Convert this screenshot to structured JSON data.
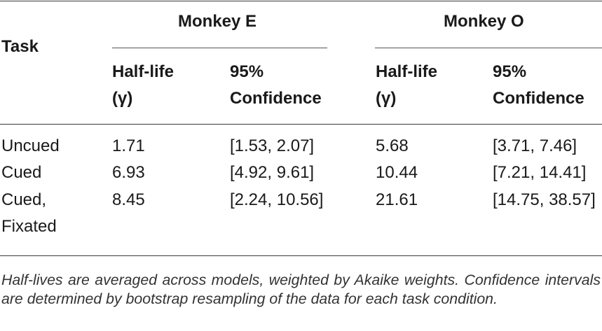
{
  "table": {
    "task_header": "Task",
    "groups": [
      "Monkey E",
      "Monkey O"
    ],
    "subheaders": {
      "halflife_line1": "Half-life",
      "halflife_line2": "(γ)",
      "ci_line1": "95%",
      "ci_line2": "Confidence"
    },
    "rows": [
      {
        "task_line1": "Uncued",
        "task_line2": "",
        "e_halflife": "1.71",
        "e_ci": "[1.53, 2.07]",
        "o_halflife": "5.68",
        "o_ci": "[3.71, 7.46]"
      },
      {
        "task_line1": "Cued",
        "task_line2": "",
        "e_halflife": "6.93",
        "e_ci": "[4.92, 9.61]",
        "o_halflife": "10.44",
        "o_ci": "[7.21, 14.41]"
      },
      {
        "task_line1": "Cued,",
        "task_line2": "Fixated",
        "e_halflife": "8.45",
        "e_ci": "[2.24, 10.56]",
        "o_halflife": "21.61",
        "o_ci": "[14.75, 38.57]"
      }
    ]
  },
  "caption": "Half-lives are averaged across models, weighted by Akaike weights. Confidence intervals are determined by bootstrap resampling of the data for each task condition."
}
